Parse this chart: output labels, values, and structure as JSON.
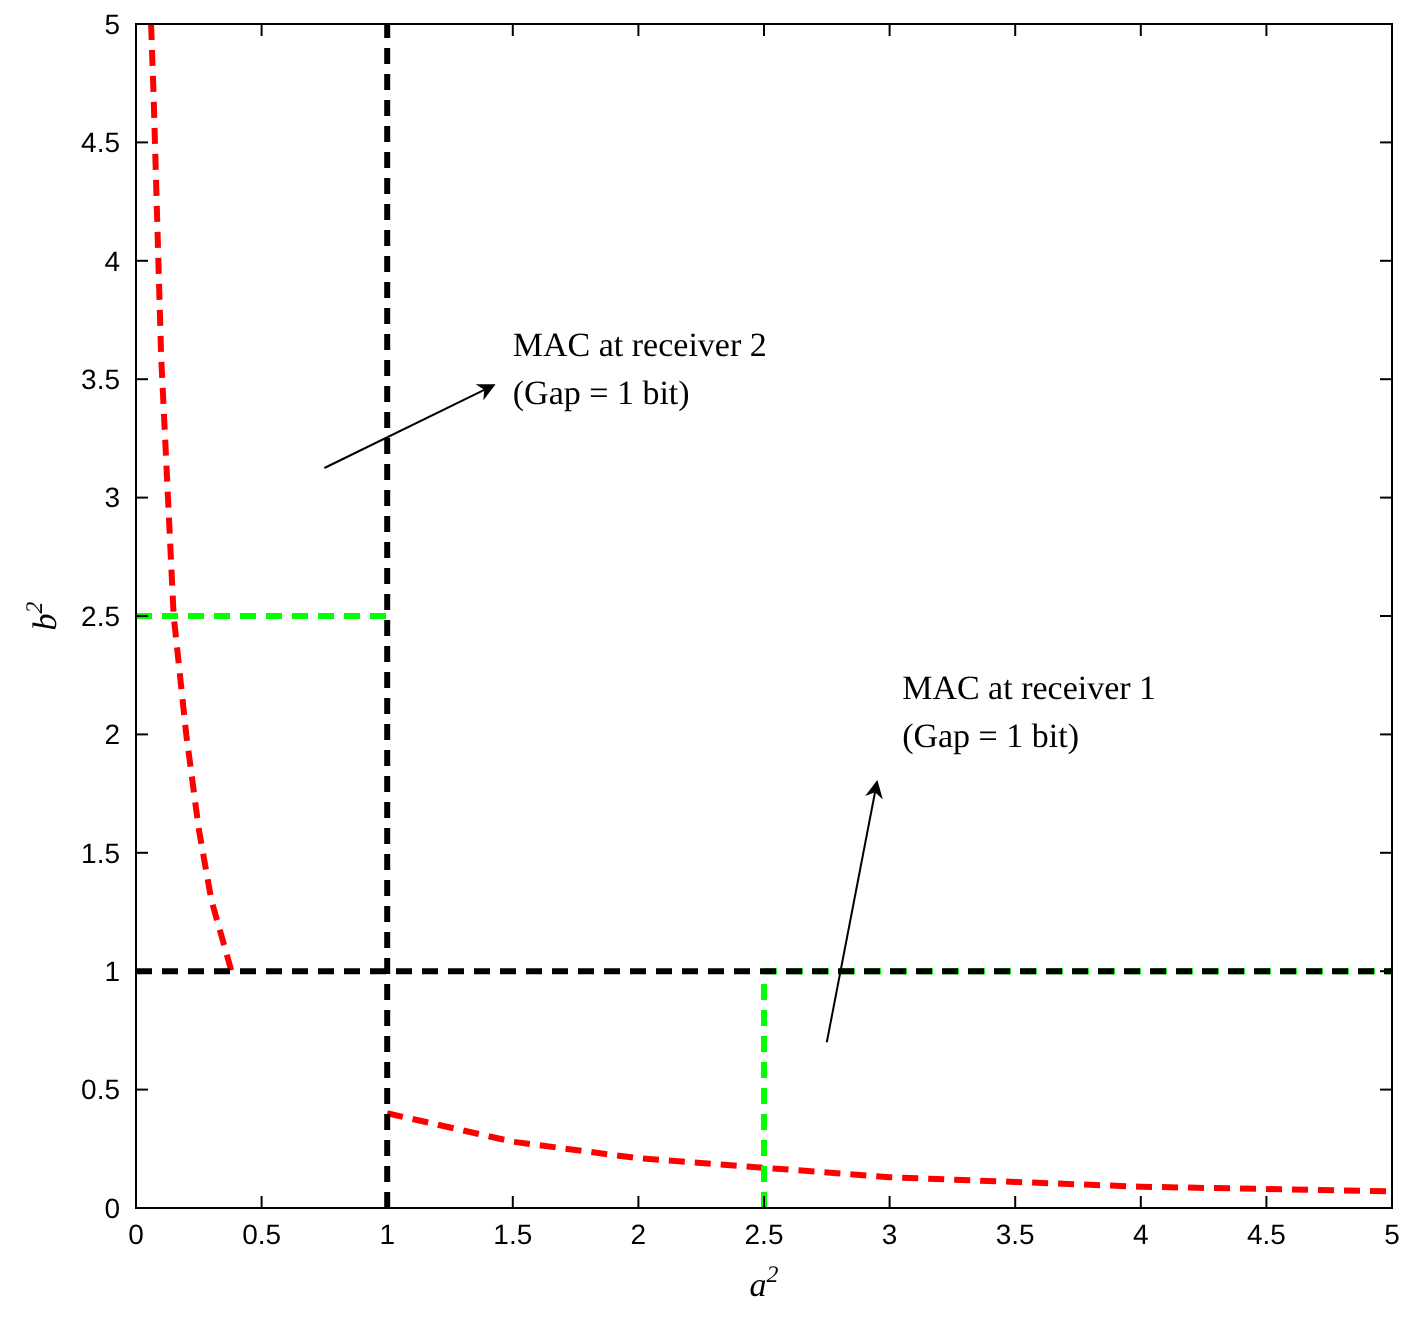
{
  "chart_data": {
    "type": "line",
    "xlabel": "a$^{2}$",
    "ylabel": "b$^{2}$",
    "xlim": [
      0,
      5
    ],
    "ylim": [
      0,
      5
    ],
    "xticks": [
      0,
      0.5,
      1,
      1.5,
      2,
      2.5,
      3,
      3.5,
      4,
      4.5,
      5
    ],
    "yticks": [
      0,
      0.5,
      1,
      1.5,
      2,
      2.5,
      3,
      3.5,
      4,
      4.5,
      5
    ],
    "grid": false,
    "line_style": "dashed",
    "series": [
      {
        "color": "#ff0000",
        "x": [
          0.06,
          0.07,
          0.1,
          0.15,
          0.2,
          0.25,
          0.3,
          0.38
        ],
        "values": [
          5,
          4.7,
          3.6,
          2.5,
          2.0,
          1.6,
          1.3,
          1.0
        ]
      },
      {
        "color": "#ff0000",
        "x": [
          1,
          1.5,
          2,
          2.5,
          3,
          3.5,
          4,
          4.5,
          5
        ],
        "values": [
          0.4,
          0.28,
          0.21,
          0.17,
          0.13,
          0.11,
          0.09,
          0.08,
          0.07
        ]
      },
      {
        "color": "#00ff00",
        "x": [
          0,
          1
        ],
        "values": [
          2.5,
          2.5
        ]
      },
      {
        "color": "#00ff00",
        "x": [
          2.5,
          2.5,
          5
        ],
        "values": [
          0,
          1,
          1
        ]
      },
      {
        "color": "#000000",
        "x": [
          1,
          1
        ],
        "values": [
          0,
          5
        ]
      },
      {
        "color": "#000000",
        "x": [
          0,
          5
        ],
        "values": [
          1,
          1
        ]
      }
    ],
    "annotations": [
      "MAC at receiver 2\n(Gap = 1 bit)",
      "MAC at receiver 1\n(Gap = 1 bit)"
    ]
  }
}
